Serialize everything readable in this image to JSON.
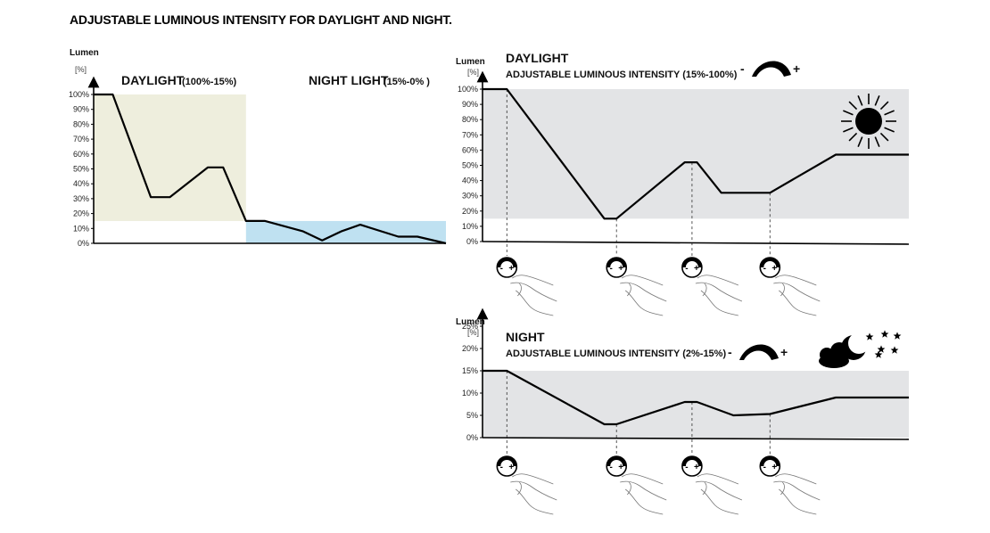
{
  "page": {
    "title": "ADJUSTABLE LUMINOUS INTENSITY  FOR DAYLIGHT AND NIGHT."
  },
  "colors": {
    "daylight_band": "#eeeedd",
    "night_band": "#bfe1f1",
    "panel_band": "#e3e4e6",
    "line": "#000000"
  },
  "chart_data": [
    {
      "id": "combined",
      "type": "line",
      "title": "",
      "ylabel": "Lumen",
      "yunit": "[%]",
      "ylim": [
        0,
        100
      ],
      "yticks": [
        "0%",
        "10%",
        "20%",
        "30%",
        "40%",
        "50%",
        "60%",
        "70%",
        "80%",
        "90%",
        "100%"
      ],
      "x": [
        0,
        1,
        3,
        4,
        6,
        6.8,
        8,
        9,
        11,
        12,
        13,
        14,
        16,
        17,
        18.5
      ],
      "values": [
        100,
        100,
        31,
        31,
        51,
        51,
        15,
        15,
        8,
        2,
        8,
        12.5,
        4.5,
        4.5,
        0
      ],
      "regions": [
        {
          "name": "DAYLIGHT",
          "range_label": "(100%-15%)",
          "ymin": 15,
          "ymax": 100,
          "color": "#eeeedd"
        },
        {
          "name": "NIGHT LIGHT",
          "range_label": "(15%-0% )",
          "ymin": 0,
          "ymax": 15,
          "color": "#bfe1f1"
        }
      ],
      "grid": false
    },
    {
      "id": "daylight",
      "type": "line",
      "title": "DAYLIGHT",
      "subtitle": "ADJUSTABLE LUMINOUS INTENSITY (15%-100%)",
      "ylabel": "Lumen",
      "yunit": "[%]",
      "ylim": [
        0,
        100
      ],
      "yticks": [
        "0%",
        "10%",
        "20%",
        "30%",
        "40%",
        "50%",
        "60%",
        "70%",
        "80%",
        "90%",
        "100%"
      ],
      "band": [
        15,
        100
      ],
      "x": [
        0,
        1,
        5,
        5.5,
        8.3,
        8.8,
        9.8,
        11.8,
        14.5,
        17.5
      ],
      "values": [
        100,
        100,
        15,
        15,
        52,
        52,
        32,
        32,
        57,
        57
      ],
      "markers_x": [
        1,
        5.5,
        8.6,
        11.8
      ],
      "control_minus": "-",
      "control_plus": "+",
      "grid": false
    },
    {
      "id": "night",
      "type": "line",
      "title": "NIGHT",
      "subtitle": "ADJUSTABLE LUMINOUS INTENSITY (2%-15%)",
      "ylabel": "Lumen",
      "yunit": "[%]",
      "ylim": [
        0,
        25
      ],
      "yticks": [
        "0%",
        "5%",
        "10%",
        "15%",
        "20%",
        "25%"
      ],
      "band": [
        0,
        15
      ],
      "x": [
        0,
        1,
        5,
        5.5,
        8.3,
        8.8,
        10.3,
        11.8,
        14.5,
        17.5
      ],
      "values": [
        15,
        15,
        3,
        3,
        8,
        8,
        5,
        5.3,
        9,
        9
      ],
      "markers_x": [
        1,
        5.5,
        8.6,
        11.8
      ],
      "control_minus": "-",
      "control_plus": "+",
      "grid": false
    }
  ]
}
